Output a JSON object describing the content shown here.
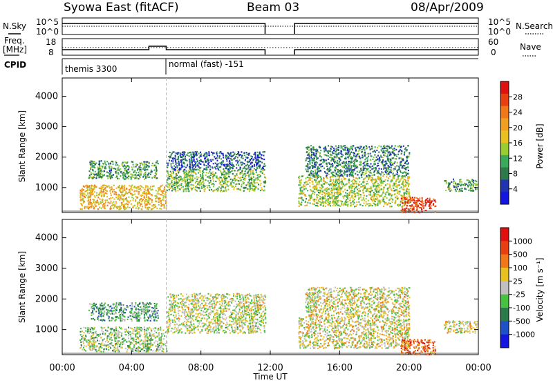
{
  "header": {
    "station": "Syowa East (fitACF)",
    "beam": "Beam 03",
    "date": "08/Apr/2009"
  },
  "nsky_panel": {
    "left_label": "N.Sky",
    "right_label": "N.Search",
    "left_ticks": [
      "10^5",
      "10^0"
    ],
    "right_ticks": [
      "10^5",
      "10^0"
    ]
  },
  "freq_panel": {
    "left_label_1": "Freq.",
    "left_label_2": "[MHz]",
    "left_ticks": [
      "18",
      "8"
    ],
    "right_ticks": [
      "60",
      "0"
    ],
    "right_label": "Nave"
  },
  "cpid_panel": {
    "label": "CPID",
    "modes": [
      {
        "name": "themis 3300",
        "start_hour": 0,
        "end_hour": 6
      },
      {
        "name": "normal (fast) -151",
        "start_hour": 6,
        "end_hour": 24
      }
    ]
  },
  "power_panel": {
    "ylabel": "Slant Range [km]",
    "yticks": [
      "4000",
      "3000",
      "2000",
      "1000"
    ],
    "colorbar_label": "Power [dB]",
    "colorbar_ticks": [
      "28",
      "24",
      "20",
      "16",
      "12",
      "8",
      "4"
    ],
    "colors": [
      "#1515e0",
      "#2233b0",
      "#2e7a4a",
      "#3aaa5a",
      "#9acd32",
      "#e8c020",
      "#f0a020",
      "#f07818",
      "#e84010",
      "#e01010"
    ]
  },
  "velocity_panel": {
    "ylabel": "Slant Range [km]",
    "yticks": [
      "4000",
      "3000",
      "2000",
      "1000"
    ],
    "colorbar_label": "Velocity [m s⁻¹]",
    "colorbar_ticks": [
      "1000",
      "500",
      "100",
      "25",
      "-25",
      "-100",
      "-500",
      "-1000"
    ],
    "colors": [
      "#1515e0",
      "#2050c8",
      "#2a7a4a",
      "#48c040",
      "#c0c0c0",
      "#e8c020",
      "#f07818",
      "#e84010",
      "#e01010"
    ]
  },
  "xaxis": {
    "label": "Time UT",
    "ticks": [
      "00:00",
      "04:00",
      "08:00",
      "12:00",
      "16:00",
      "20:00",
      "00:00"
    ]
  },
  "chart_data": [
    {
      "type": "heatmap",
      "title": "Power [dB]",
      "xlabel": "Time UT",
      "ylabel": "Slant Range [km]",
      "xlim": [
        0,
        24
      ],
      "ylim": [
        180,
        4600
      ],
      "clim": [
        0,
        30
      ],
      "data_gap_hours": [
        11.7,
        13.4
      ],
      "series": [
        {
          "name": "echo_regions",
          "regions": [
            {
              "t": [
                1.0,
                6.0
              ],
              "range": [
                300,
                1100
              ],
              "value": 18
            },
            {
              "t": [
                1.5,
                5.5
              ],
              "range": [
                1300,
                1900
              ],
              "value": 10
            },
            {
              "t": [
                6.0,
                11.7
              ],
              "range": [
                900,
                1600
              ],
              "value": 12
            },
            {
              "t": [
                6.0,
                11.7
              ],
              "range": [
                1600,
                2200
              ],
              "value": 6
            },
            {
              "t": [
                13.6,
                20.0
              ],
              "range": [
                400,
                1400
              ],
              "value": 14
            },
            {
              "t": [
                14.0,
                20.0
              ],
              "range": [
                1400,
                2400
              ],
              "value": 8
            },
            {
              "t": [
                19.5,
                21.5
              ],
              "range": [
                200,
                700
              ],
              "value": 26
            },
            {
              "t": [
                22.0,
                23.9
              ],
              "range": [
                900,
                1300
              ],
              "value": 10
            }
          ]
        }
      ]
    },
    {
      "type": "heatmap",
      "title": "Velocity [m s-1]",
      "xlabel": "Time UT",
      "ylabel": "Slant Range [km]",
      "xlim": [
        0,
        24
      ],
      "ylim": [
        180,
        4600
      ],
      "clim": [
        -1000,
        1000
      ],
      "data_gap_hours": [
        11.7,
        13.4
      ],
      "series": [
        {
          "name": "echo_regions",
          "regions": [
            {
              "t": [
                1.0,
                6.0
              ],
              "range": [
                300,
                1100
              ],
              "value": -100
            },
            {
              "t": [
                1.5,
                5.5
              ],
              "range": [
                1300,
                1900
              ],
              "value": -300
            },
            {
              "t": [
                6.0,
                11.7
              ],
              "range": [
                900,
                1600
              ],
              "value": 0
            },
            {
              "t": [
                6.0,
                11.7
              ],
              "range": [
                1600,
                2200
              ],
              "value": 50
            },
            {
              "t": [
                13.6,
                20.0
              ],
              "range": [
                400,
                1400
              ],
              "value": 80
            },
            {
              "t": [
                14.0,
                20.0
              ],
              "range": [
                1400,
                2400
              ],
              "value": 80
            },
            {
              "t": [
                19.5,
                21.5
              ],
              "range": [
                200,
                700
              ],
              "value": 600
            },
            {
              "t": [
                22.0,
                23.9
              ],
              "range": [
                900,
                1300
              ],
              "value": 100
            }
          ]
        }
      ]
    }
  ]
}
